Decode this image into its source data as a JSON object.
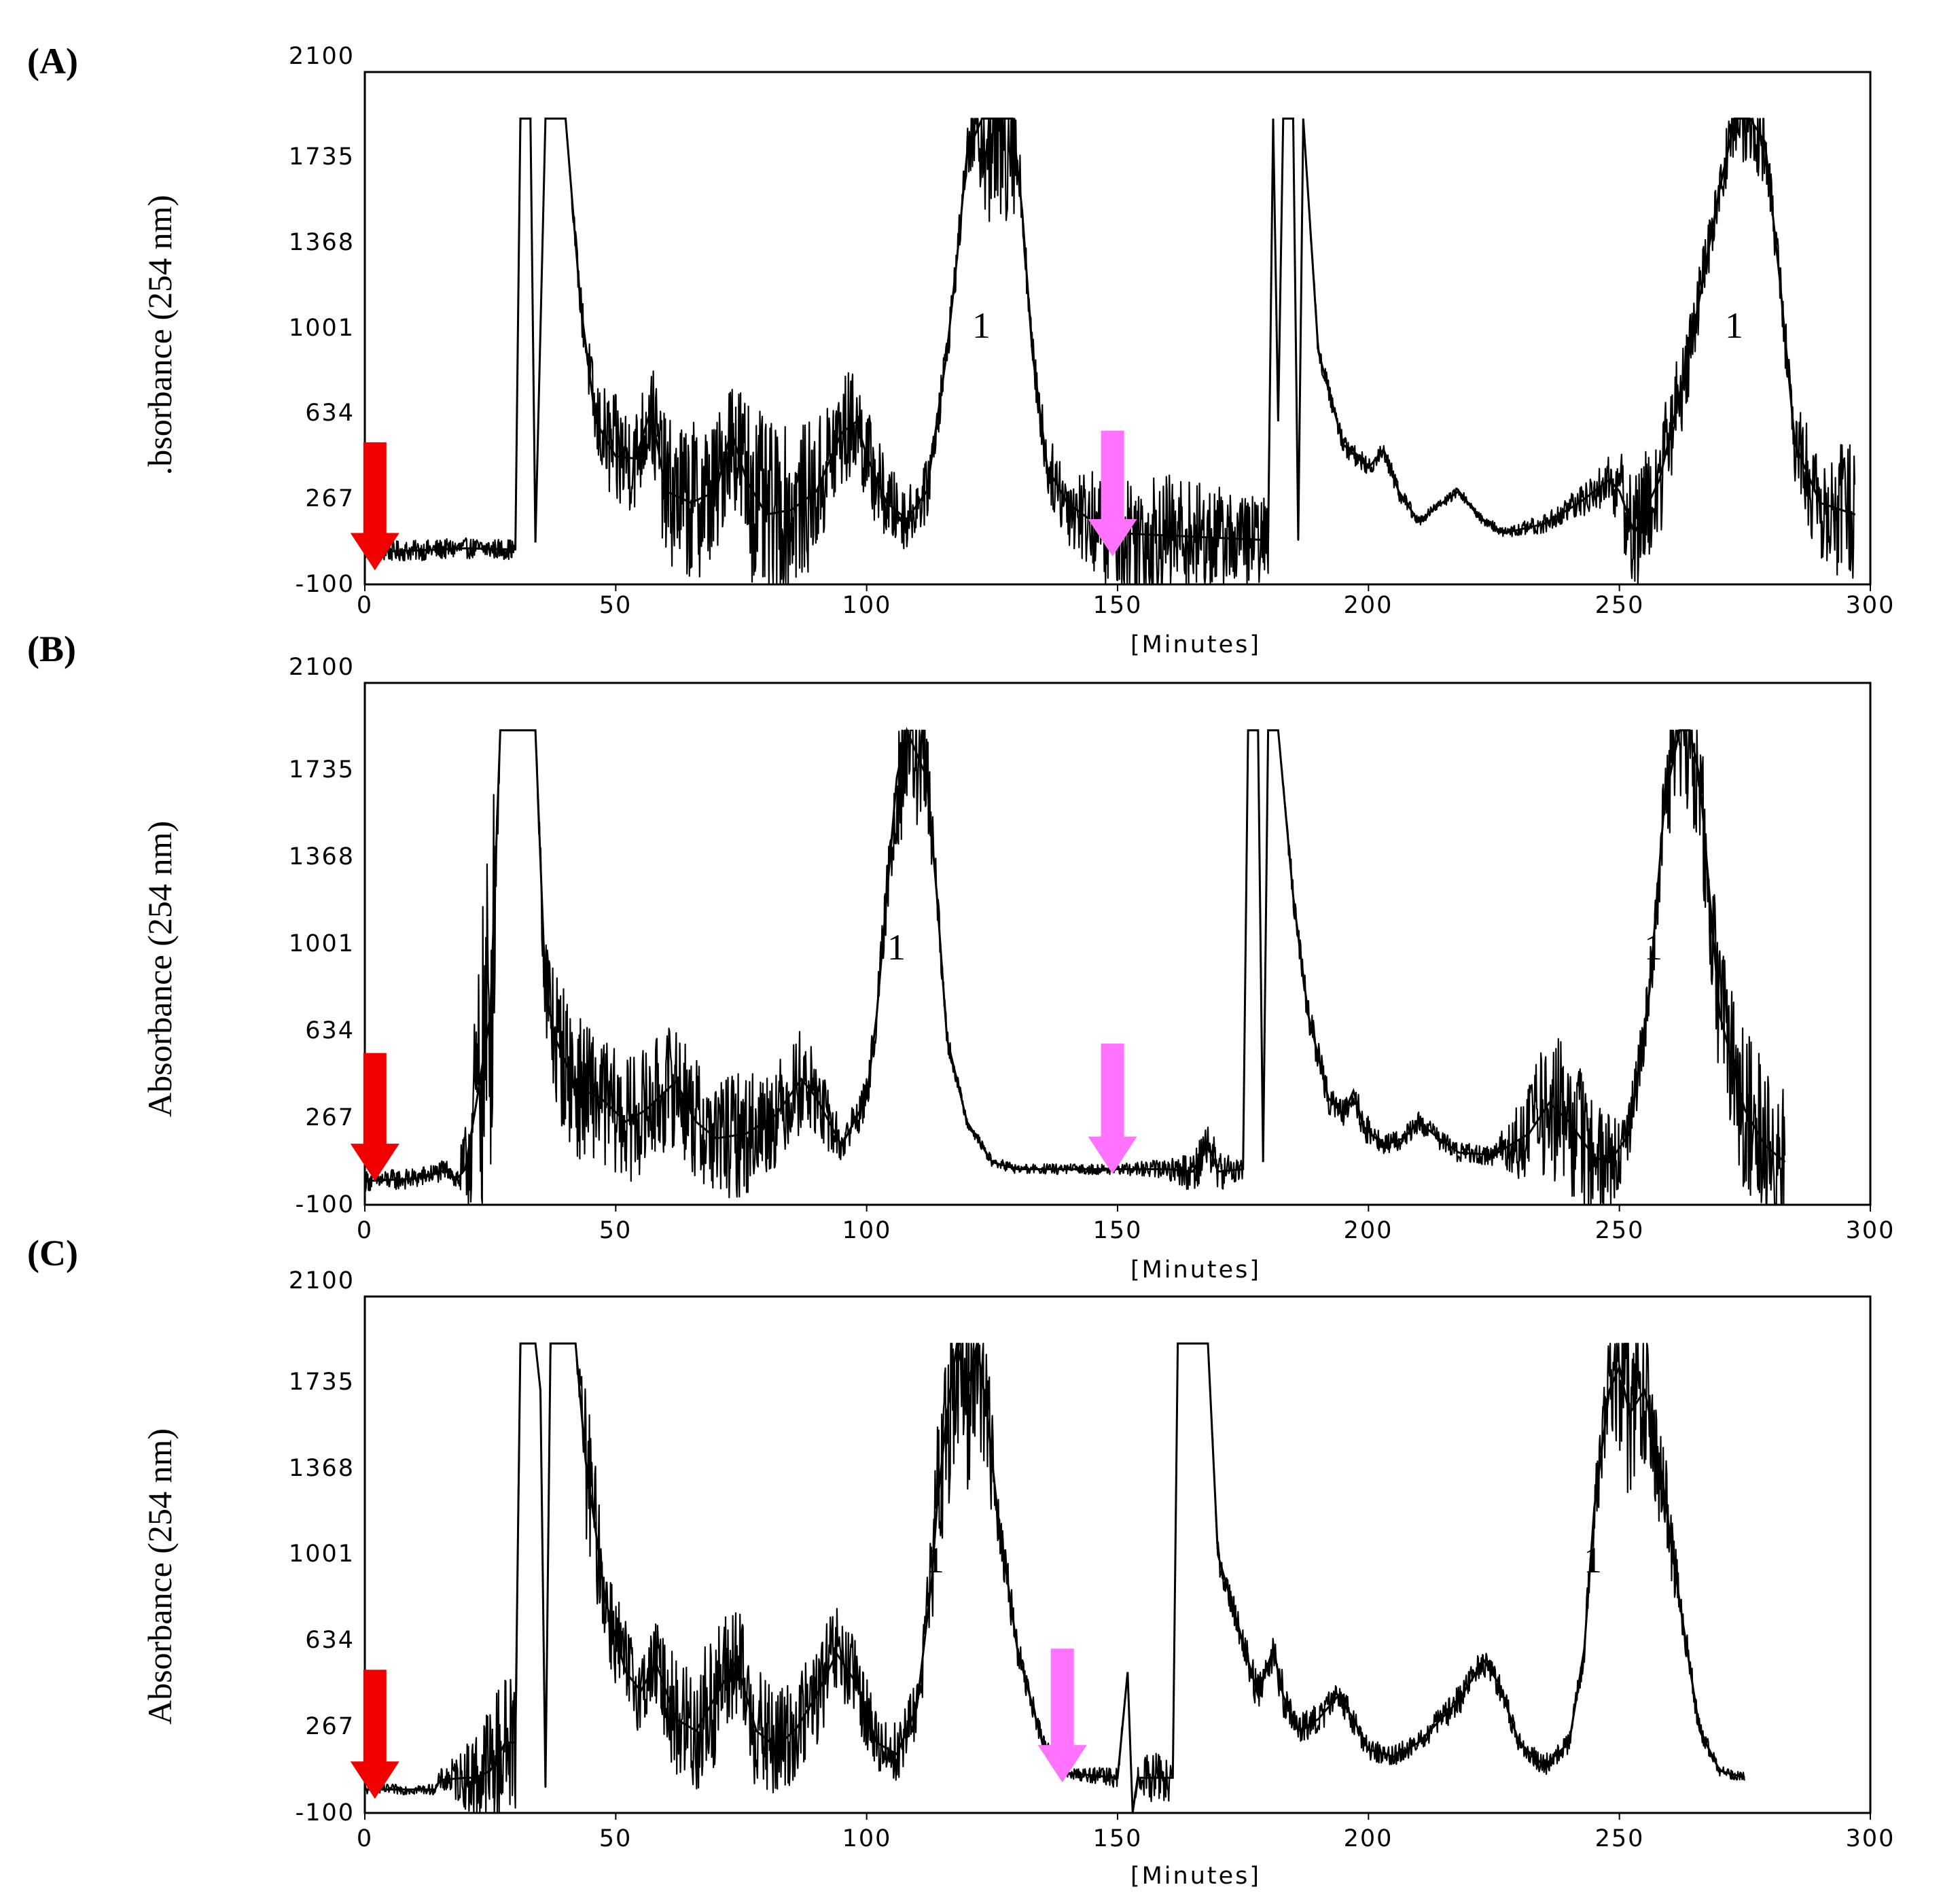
{
  "figure": {
    "colors": {
      "trace": "#000000",
      "red_arrow": "#f20000",
      "pink_arrow": "#ff73ff"
    }
  },
  "chart_data": [
    {
      "type": "line",
      "panel": "(A)",
      "title": "",
      "xlabel": "[Minutes]",
      "ylabel": ".bsorbance (254 nm)",
      "xlim": [
        0,
        300
      ],
      "ylim": [
        -100,
        2100
      ],
      "xticks": [
        0,
        50,
        100,
        150,
        200,
        250,
        300
      ],
      "yticks": [
        -100,
        267,
        634,
        1001,
        1368,
        1735,
        2100
      ],
      "grid": false,
      "series": [
        {
          "name": "absorbance",
          "x": [
            0,
            10,
            20,
            30,
            31,
            33,
            34,
            36,
            37,
            38,
            40,
            43,
            46,
            50,
            54,
            57,
            60,
            65,
            70,
            73,
            76,
            80,
            85,
            90,
            95,
            98,
            100,
            104,
            108,
            112,
            116,
            118,
            120,
            123,
            126,
            129,
            131,
            133,
            136,
            140,
            145,
            150,
            160,
            170,
            180,
            181,
            182,
            183,
            185,
            186,
            187,
            190,
            195,
            200,
            203,
            206,
            210,
            214,
            218,
            222,
            227,
            235,
            242,
            248,
            250,
            253,
            258,
            264,
            270,
            273,
            276,
            279,
            282,
            285,
            290,
            297
          ],
          "y": [
            40,
            45,
            55,
            50,
            1900,
            1900,
            80,
            1900,
            1900,
            1900,
            1900,
            1100,
            600,
            450,
            440,
            650,
            300,
            250,
            300,
            560,
            350,
            200,
            220,
            300,
            550,
            600,
            450,
            250,
            180,
            300,
            900,
            1300,
            1750,
            1950,
            1950,
            1950,
            1500,
            900,
            400,
            250,
            170,
            120,
            110,
            100,
            90,
            1900,
            600,
            1900,
            1900,
            90,
            1900,
            900,
            500,
            400,
            480,
            300,
            170,
            240,
            300,
            190,
            120,
            160,
            250,
            350,
            300,
            120,
            350,
            900,
            1600,
            1900,
            1900,
            1800,
            1200,
            500,
            250,
            200
          ],
          "noise": [
            2,
            2,
            2,
            2,
            0,
            0,
            0,
            0,
            0,
            0,
            0,
            4,
            8,
            12,
            10,
            10,
            14,
            16,
            14,
            12,
            18,
            18,
            16,
            14,
            12,
            10,
            10,
            8,
            6,
            6,
            4,
            4,
            4,
            20,
            30,
            20,
            4,
            4,
            6,
            8,
            10,
            12,
            12,
            10,
            8,
            0,
            0,
            0,
            0,
            0,
            0,
            2,
            2,
            2,
            2,
            2,
            1,
            1,
            1,
            1,
            1,
            2,
            3,
            5,
            8,
            12,
            12,
            8,
            4,
            8,
            10,
            8,
            4,
            8,
            12,
            14
          ]
        }
      ],
      "annotations": [
        {
          "text": "1",
          "x": 121,
          "y": 1020
        },
        {
          "text": "1",
          "x": 271,
          "y": 1020
        }
      ],
      "arrows": [
        {
          "color": "red",
          "x": 2,
          "y_tip": -40,
          "y_top": 510
        },
        {
          "color": "pink",
          "x": 149,
          "y_tip": 20,
          "y_top": 560
        }
      ]
    },
    {
      "type": "line",
      "panel": "(B)",
      "title": "",
      "xlabel": "[Minutes]",
      "ylabel": "Absorbance (254 nm)",
      "xlim": [
        0,
        300
      ],
      "ylim": [
        -100,
        2100
      ],
      "xticks": [
        0,
        50,
        100,
        150,
        200,
        250,
        300
      ],
      "yticks": [
        -100,
        267,
        634,
        1001,
        1368,
        1735,
        2100
      ],
      "grid": false,
      "series": [
        {
          "name": "absorbance",
          "x": [
            0,
            10,
            17,
            18,
            20,
            22,
            25,
            27,
            30,
            33,
            34,
            36,
            38,
            42,
            47,
            52,
            56,
            62,
            66,
            70,
            76,
            82,
            87,
            90,
            95,
            100,
            102,
            104,
            106,
            108,
            110,
            112,
            114,
            116,
            120,
            125,
            130,
            140,
            150,
            160,
            165,
            168,
            170,
            175,
            176,
            177,
            178,
            179,
            180,
            181,
            182,
            185,
            188,
            192,
            195,
            197,
            199,
            203,
            207,
            210,
            214,
            218,
            225,
            232,
            236,
            240,
            245,
            248,
            252,
            256,
            259,
            262,
            264,
            266,
            268,
            270,
            275,
            279,
            283
          ],
          "y": [
            0,
            10,
            50,
            0,
            50,
            300,
            700,
            1900,
            1900,
            1900,
            1900,
            800,
            600,
            400,
            350,
            250,
            300,
            420,
            250,
            180,
            200,
            280,
            430,
            350,
            150,
            350,
            700,
            1200,
            1700,
            1900,
            1800,
            1700,
            1200,
            600,
            250,
            80,
            50,
            50,
            50,
            50,
            40,
            160,
            40,
            50,
            1900,
            1900,
            1900,
            80,
            1900,
            1900,
            1900,
            1200,
            700,
            350,
            280,
            380,
            230,
            150,
            180,
            250,
            180,
            120,
            110,
            200,
            330,
            250,
            100,
            80,
            200,
            800,
            1600,
            1900,
            1900,
            1700,
            1200,
            700,
            300,
            150,
            80
          ],
          "noise": [
            2,
            2,
            2,
            2,
            8,
            20,
            40,
            0,
            0,
            0,
            0,
            14,
            14,
            14,
            12,
            12,
            12,
            12,
            12,
            12,
            12,
            10,
            10,
            8,
            4,
            4,
            4,
            6,
            15,
            20,
            15,
            15,
            4,
            2,
            1,
            1,
            1,
            1,
            1,
            2,
            4,
            6,
            4,
            2,
            0,
            0,
            0,
            0,
            0,
            0,
            0,
            3,
            3,
            3,
            3,
            3,
            3,
            2,
            2,
            2,
            2,
            2,
            2,
            10,
            14,
            14,
            12,
            10,
            6,
            6,
            10,
            15,
            15,
            15,
            12,
            14,
            16,
            16,
            16
          ]
        }
      ],
      "annotations": [
        {
          "text": "1",
          "x": 104,
          "y": 1030
        },
        {
          "text": "1",
          "x": 255,
          "y": 1030
        }
      ],
      "arrows": [
        {
          "color": "red",
          "x": 2,
          "y_tip": 0,
          "y_top": 540
        },
        {
          "color": "pink",
          "x": 149,
          "y_tip": 30,
          "y_top": 580
        }
      ]
    },
    {
      "type": "line",
      "panel": "(C)",
      "title": "",
      "xlabel": "[Minutes]",
      "ylabel": "Absorbance (254 nm)",
      "xlim": [
        0,
        300
      ],
      "ylim": [
        -100,
        2100
      ],
      "xticks": [
        0,
        50,
        100,
        150,
        200,
        250,
        300
      ],
      "yticks": [
        -100,
        267,
        634,
        1001,
        1368,
        1735,
        2100
      ],
      "grid": false,
      "series": [
        {
          "name": "absorbance",
          "x": [
            0,
            14,
            15,
            20,
            22,
            25,
            28,
            30,
            31,
            34,
            35,
            36,
            37,
            38,
            42,
            44,
            48,
            52,
            55,
            58,
            62,
            66,
            70,
            74,
            78,
            82,
            86,
            90,
            94,
            98,
            102,
            106,
            110,
            113,
            114,
            116,
            118,
            120,
            122,
            124,
            126,
            130,
            135,
            140,
            150,
            152,
            153,
            154,
            155,
            160,
            161,
            162,
            164,
            165,
            166,
            167,
            168,
            170,
            174,
            178,
            181,
            183,
            186,
            190,
            194,
            197,
            200,
            205,
            210,
            218,
            223,
            226,
            230,
            235,
            240,
            243,
            245,
            248,
            250,
            252,
            255,
            258,
            262,
            266,
            270,
            275
          ],
          "y": [
            0,
            0,
            40,
            50,
            50,
            80,
            200,
            200,
            1900,
            1900,
            1700,
            10,
            1900,
            1900,
            1900,
            1400,
            800,
            500,
            420,
            540,
            300,
            250,
            400,
            550,
            250,
            180,
            260,
            400,
            580,
            450,
            200,
            150,
            350,
            900,
            1200,
            1600,
            1900,
            1700,
            1900,
            1600,
            1200,
            600,
            200,
            70,
            50,
            500,
            -100,
            50,
            50,
            50,
            50,
            1900,
            1900,
            1900,
            1900,
            1900,
            1900,
            1000,
            700,
            400,
            600,
            400,
            250,
            300,
            400,
            300,
            170,
            140,
            200,
            380,
            550,
            450,
            200,
            100,
            200,
            600,
            1200,
            1700,
            1800,
            1600,
            1700,
            1400,
            800,
            250,
            80,
            50
          ],
          "noise": [
            1,
            1,
            2,
            6,
            10,
            14,
            14,
            14,
            0,
            0,
            0,
            0,
            0,
            0,
            0,
            15,
            10,
            10,
            8,
            8,
            12,
            14,
            14,
            12,
            12,
            12,
            10,
            10,
            10,
            8,
            6,
            6,
            6,
            10,
            15,
            20,
            20,
            20,
            20,
            15,
            6,
            3,
            2,
            1,
            2,
            0,
            0,
            2,
            4,
            6,
            0,
            0,
            0,
            0,
            0,
            0,
            0,
            3,
            3,
            4,
            4,
            4,
            3,
            3,
            3,
            3,
            2,
            2,
            2,
            3,
            3,
            3,
            2,
            2,
            2,
            3,
            6,
            12,
            18,
            18,
            18,
            12,
            4,
            2,
            1,
            1
          ]
        }
      ],
      "annotations": [
        {
          "text": "1",
          "x": 113,
          "y": 1000
        },
        {
          "text": "1",
          "x": 244,
          "y": 1000
        }
      ],
      "arrows": [
        {
          "color": "red",
          "x": 2,
          "y_tip": -40,
          "y_top": 510
        },
        {
          "color": "pink",
          "x": 139,
          "y_tip": 30,
          "y_top": 600
        }
      ]
    }
  ]
}
